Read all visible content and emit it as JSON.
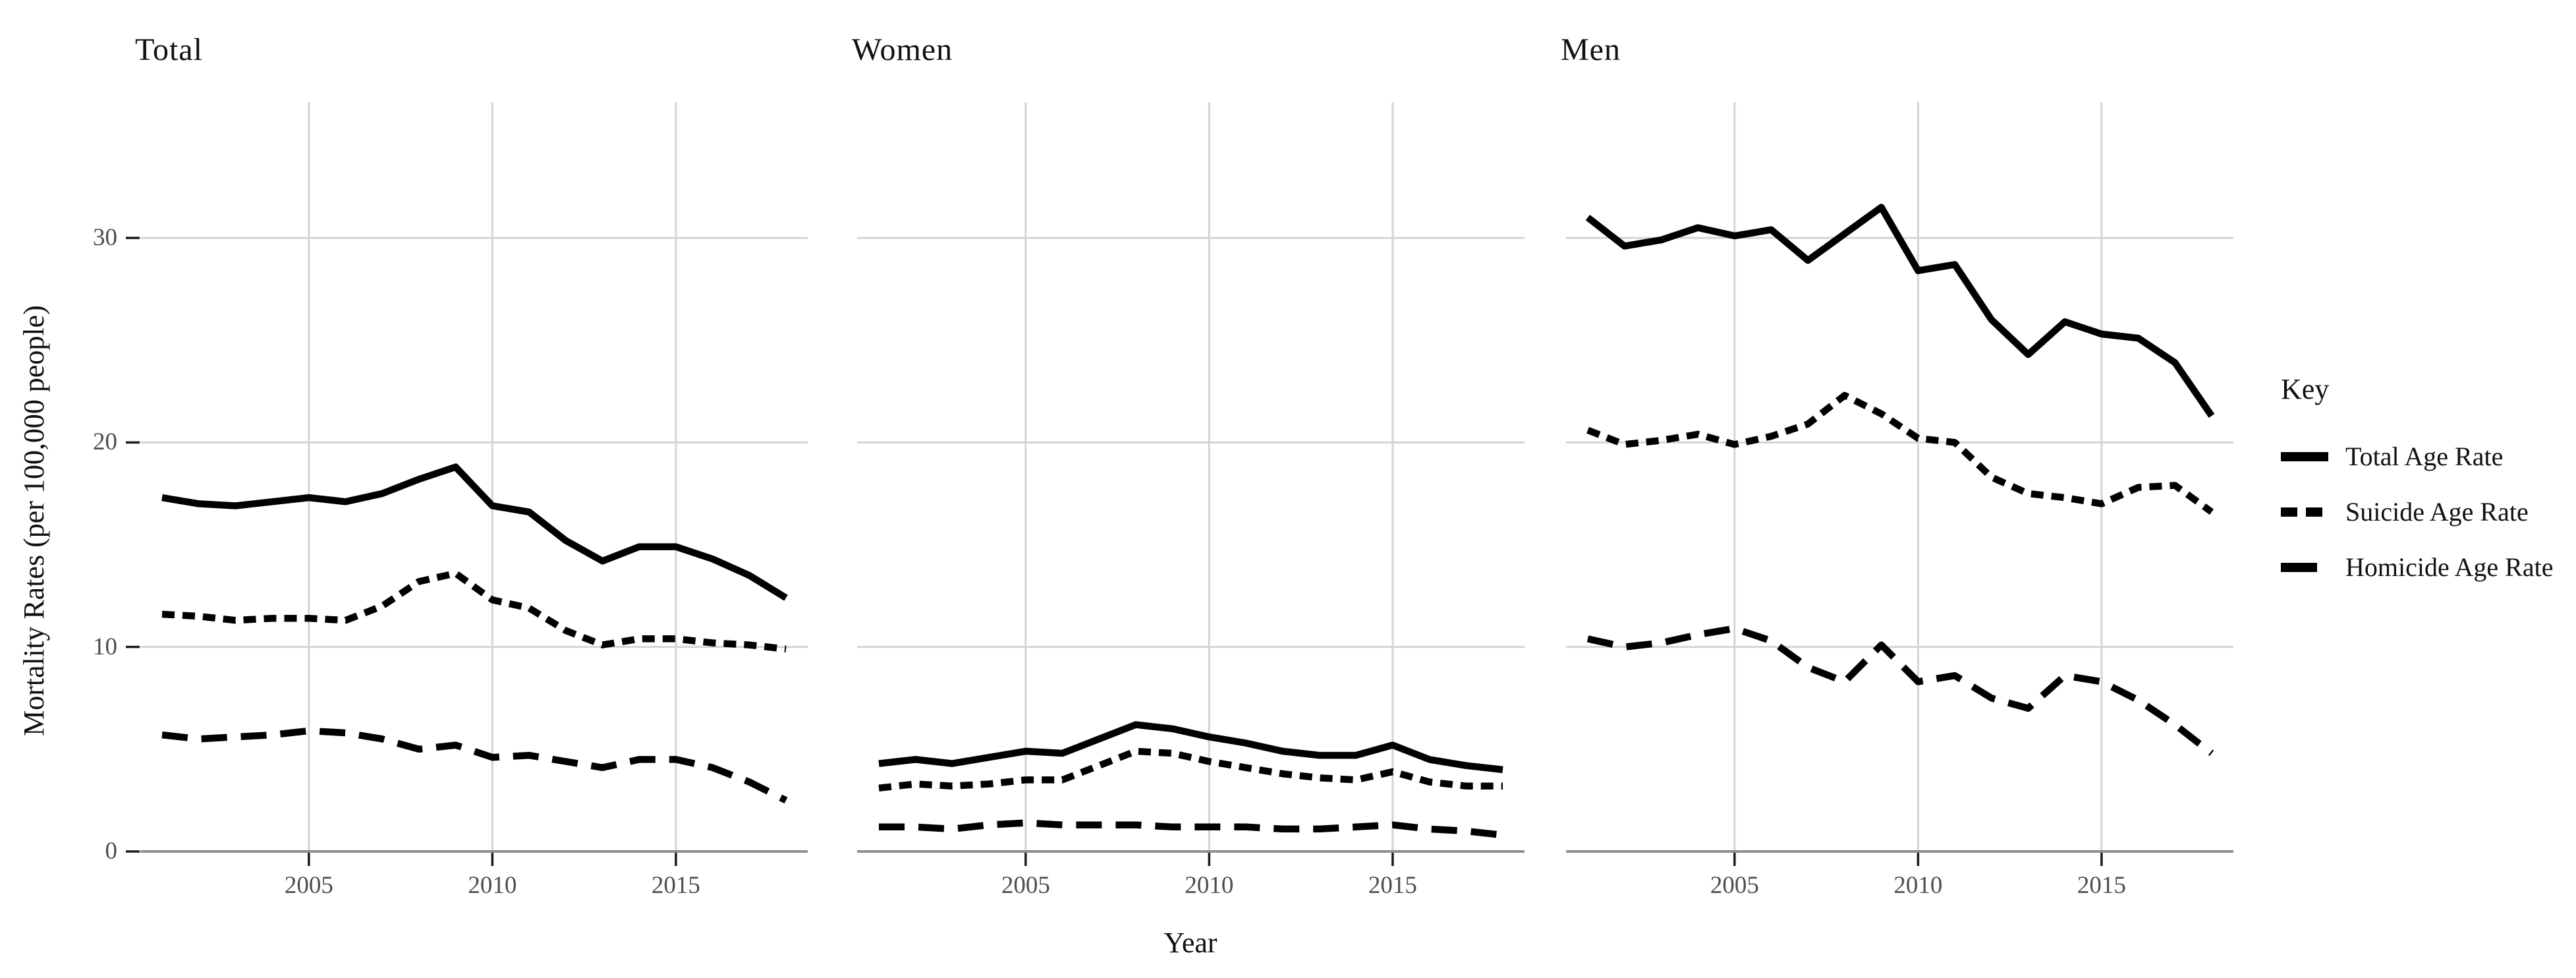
{
  "figure": {
    "y_axis_title": "Mortality Rates (per 100,000 people)",
    "x_axis_title": "Year",
    "colors": {
      "line": "#000000",
      "grid": "#d4d4d4",
      "axis_line": "#8f8f8f",
      "tick_mark": "#1a1a1a",
      "tick_label": "#4d4d4d",
      "text": "#111111",
      "background": "#ffffff"
    }
  },
  "legend": {
    "title": "Key",
    "entries": [
      {
        "label": "Total Age Rate",
        "linetype": "solid"
      },
      {
        "label": "Suicide Age Rate",
        "linetype": "dashed"
      },
      {
        "label": "Homicide Age Rate",
        "linetype": "longdash"
      }
    ]
  },
  "chart_data": [
    {
      "type": "line",
      "title": "Total",
      "x": [
        2001,
        2002,
        2003,
        2004,
        2005,
        2006,
        2007,
        2008,
        2009,
        2010,
        2011,
        2012,
        2013,
        2014,
        2015,
        2016,
        2017,
        2018
      ],
      "x_ticks": [
        2005,
        2010,
        2015
      ],
      "y_ticks": [
        0,
        10,
        20,
        30
      ],
      "ylim": [
        0,
        36.7
      ],
      "grid": true,
      "legend_position": "right",
      "series": [
        {
          "name": "Total Age Rate",
          "linetype": "solid",
          "values": [
            17.3,
            17.0,
            16.9,
            17.1,
            17.3,
            17.1,
            17.5,
            18.2,
            18.8,
            16.9,
            16.6,
            15.2,
            14.2,
            14.9,
            14.9,
            14.3,
            13.5,
            12.4
          ]
        },
        {
          "name": "Suicide Age Rate",
          "linetype": "dashed",
          "values": [
            11.6,
            11.5,
            11.3,
            11.4,
            11.4,
            11.3,
            12.0,
            13.2,
            13.6,
            12.3,
            11.9,
            10.8,
            10.1,
            10.4,
            10.4,
            10.2,
            10.1,
            9.9
          ]
        },
        {
          "name": "Homicide Age Rate",
          "linetype": "longdash",
          "values": [
            5.7,
            5.5,
            5.6,
            5.7,
            5.9,
            5.8,
            5.5,
            5.0,
            5.2,
            4.6,
            4.7,
            4.4,
            4.1,
            4.5,
            4.5,
            4.1,
            3.4,
            2.5
          ]
        }
      ]
    },
    {
      "type": "line",
      "title": "Women",
      "x": [
        2001,
        2002,
        2003,
        2004,
        2005,
        2006,
        2007,
        2008,
        2009,
        2010,
        2011,
        2012,
        2013,
        2014,
        2015,
        2016,
        2017,
        2018
      ],
      "x_ticks": [
        2005,
        2010,
        2015
      ],
      "y_ticks": [
        0,
        10,
        20,
        30
      ],
      "ylim": [
        0,
        36.7
      ],
      "grid": true,
      "series": [
        {
          "name": "Total Age Rate",
          "linetype": "solid",
          "values": [
            4.3,
            4.5,
            4.3,
            4.6,
            4.9,
            4.8,
            5.5,
            6.2,
            6.0,
            5.6,
            5.3,
            4.9,
            4.7,
            4.7,
            5.2,
            4.5,
            4.2,
            4.0
          ]
        },
        {
          "name": "Suicide Age Rate",
          "linetype": "dashed",
          "values": [
            3.1,
            3.3,
            3.2,
            3.3,
            3.5,
            3.5,
            4.2,
            4.9,
            4.8,
            4.4,
            4.1,
            3.8,
            3.6,
            3.5,
            3.9,
            3.4,
            3.2,
            3.2
          ]
        },
        {
          "name": "Homicide Age Rate",
          "linetype": "longdash",
          "values": [
            1.2,
            1.2,
            1.1,
            1.3,
            1.4,
            1.3,
            1.3,
            1.3,
            1.2,
            1.2,
            1.2,
            1.1,
            1.1,
            1.2,
            1.3,
            1.1,
            1.0,
            0.8
          ]
        }
      ]
    },
    {
      "type": "line",
      "title": "Men",
      "x": [
        2001,
        2002,
        2003,
        2004,
        2005,
        2006,
        2007,
        2008,
        2009,
        2010,
        2011,
        2012,
        2013,
        2014,
        2015,
        2016,
        2017,
        2018
      ],
      "x_ticks": [
        2005,
        2010,
        2015
      ],
      "y_ticks": [
        0,
        10,
        20,
        30
      ],
      "ylim": [
        0,
        36.7
      ],
      "grid": true,
      "series": [
        {
          "name": "Total Age Rate",
          "linetype": "solid",
          "values": [
            31.0,
            29.6,
            29.9,
            30.5,
            30.1,
            30.4,
            28.9,
            30.2,
            31.5,
            28.4,
            28.7,
            26.0,
            24.3,
            25.9,
            25.3,
            25.1,
            23.9,
            21.3
          ]
        },
        {
          "name": "Suicide Age Rate",
          "linetype": "dashed",
          "values": [
            20.6,
            19.9,
            20.1,
            20.4,
            19.9,
            20.3,
            20.9,
            22.3,
            21.4,
            20.2,
            20.0,
            18.3,
            17.5,
            17.3,
            17.0,
            17.8,
            17.9,
            16.6
          ]
        },
        {
          "name": "Homicide Age Rate",
          "linetype": "longdash",
          "values": [
            10.4,
            10.0,
            10.2,
            10.6,
            10.9,
            10.3,
            9.0,
            8.3,
            10.1,
            8.3,
            8.6,
            7.5,
            7.0,
            8.6,
            8.3,
            7.4,
            6.2,
            4.8
          ]
        }
      ]
    }
  ]
}
